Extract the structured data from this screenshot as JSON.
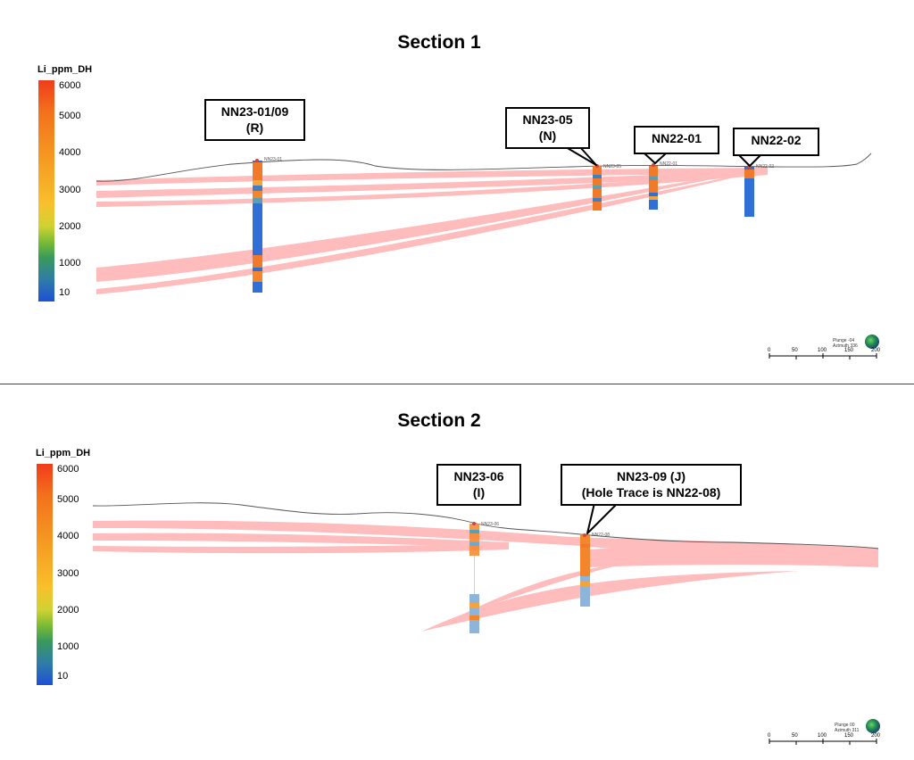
{
  "section1": {
    "title": "Section 1",
    "legend": {
      "title": "Li_ppm_DH",
      "ticks": [
        "6000",
        "5000",
        "4000",
        "3000",
        "2000",
        "1000",
        "10"
      ]
    },
    "callouts": [
      {
        "line1": "NN23-01/09",
        "line2": "(R)"
      },
      {
        "line1": "NN23-05",
        "line2": "(N)"
      },
      {
        "line1": "NN22-01",
        "line2": ""
      },
      {
        "line1": "NN22-02",
        "line2": ""
      }
    ],
    "hole_labels": [
      "NN23-01",
      "NN23-05",
      "NN22-01",
      "NN22-02"
    ],
    "navigator": {
      "plunge": "Plunge -04",
      "azimuth": "Azimuth 336"
    },
    "scale": [
      "0",
      "50",
      "100",
      "150",
      "200"
    ]
  },
  "section2": {
    "title": "Section 2",
    "legend": {
      "title": "Li_ppm_DH",
      "ticks": [
        "6000",
        "5000",
        "4000",
        "3000",
        "2000",
        "1000",
        "10"
      ]
    },
    "callouts": [
      {
        "line1": "NN23-06",
        "line2": "(I)"
      },
      {
        "line1": "NN23-09 (J)",
        "line2": "(Hole Trace is NN22-08)"
      }
    ],
    "hole_labels": [
      "NN23-06",
      "NN22-08"
    ],
    "navigator": {
      "plunge": "Plunge 00",
      "azimuth": "Azimuth 311"
    },
    "scale": [
      "0",
      "50",
      "100",
      "150",
      "200"
    ]
  },
  "colors": {
    "dike": "#ffbcbc",
    "topo": "#555555",
    "hole_blue": "#2f6fd6",
    "hole_orange": "#f07a2a"
  }
}
